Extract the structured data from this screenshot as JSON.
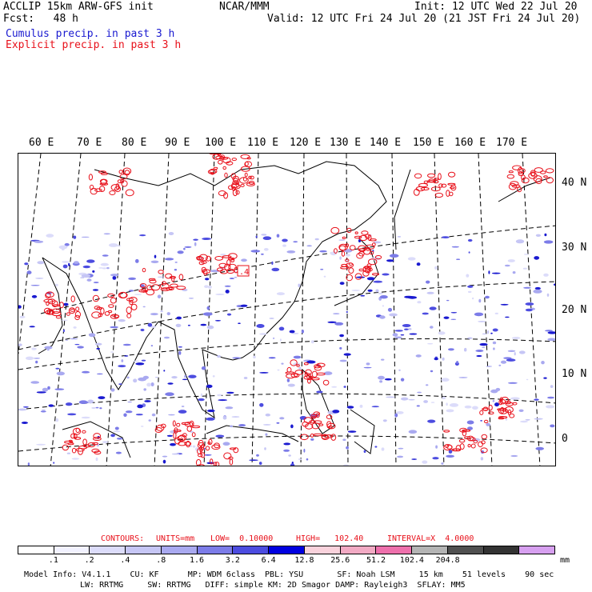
{
  "header": {
    "line1_left": "ACCLIP 15km ARW-GFS init",
    "line1_center": "NCAR/MMM",
    "line1_right": "Init: 12 UTC Wed 22 Jul 20",
    "line2_left": "Fcst:   48 h",
    "line2_right": "Valid: 12 UTC Fri 24 Jul 20 (21 JST Fri 24 Jul 20)",
    "line3": "Cumulus precip. in past 3 h",
    "line4": "Explicit precip. in past 3 h"
  },
  "map": {
    "lon_labels": [
      "60 E",
      "70 E",
      "80 E",
      "90 E",
      "100 E",
      "110 E",
      "120 E",
      "130 E",
      "140 E",
      "150 E",
      "160 E",
      "170 E"
    ],
    "lat_labels": [
      "40 N",
      "30 N",
      "20 N",
      "10 N",
      "0"
    ],
    "contour_label": ".4"
  },
  "contours": {
    "label": "CONTOURS:",
    "units": "UNITS=mm",
    "low": "LOW=  0.10000",
    "high": "HIGH=   102.40",
    "interval": "INTERVAL=X  4.0000"
  },
  "legend": {
    "ticks": [
      ".1",
      ".2",
      ".4",
      ".8",
      "1.6",
      "3.2",
      "6.4",
      "12.8",
      "25.6",
      "51.2",
      "102.4",
      "204.8"
    ],
    "unit": "mm",
    "colors": [
      "#ffffff",
      "#f2f2ff",
      "#dcdcfa",
      "#c6c6f5",
      "#a9a9f0",
      "#7c7ce8",
      "#4c4ce0",
      "#0000e0",
      "#f9d2dc",
      "#f2aac4",
      "#ee70ac",
      "#b4b4b4",
      "#505050",
      "#333333",
      "#d7a0f0"
    ]
  },
  "model_info": {
    "line1": "Model Info: V4.1.1    CU: KF      MP: WDM 6class  PBL: YSU       SF: Noah LSM     15 km    51 levels    90 sec",
    "line2": "LW: RRTMG     SW: RRTMG   DIFF: simple KM: 2D Smagor DAMP: Rayleigh3  SFLAY: MM5"
  },
  "colors": {
    "cumulus": "#1a1ad0",
    "explicit": "#e8101a",
    "contour_text": "#e8101a"
  }
}
